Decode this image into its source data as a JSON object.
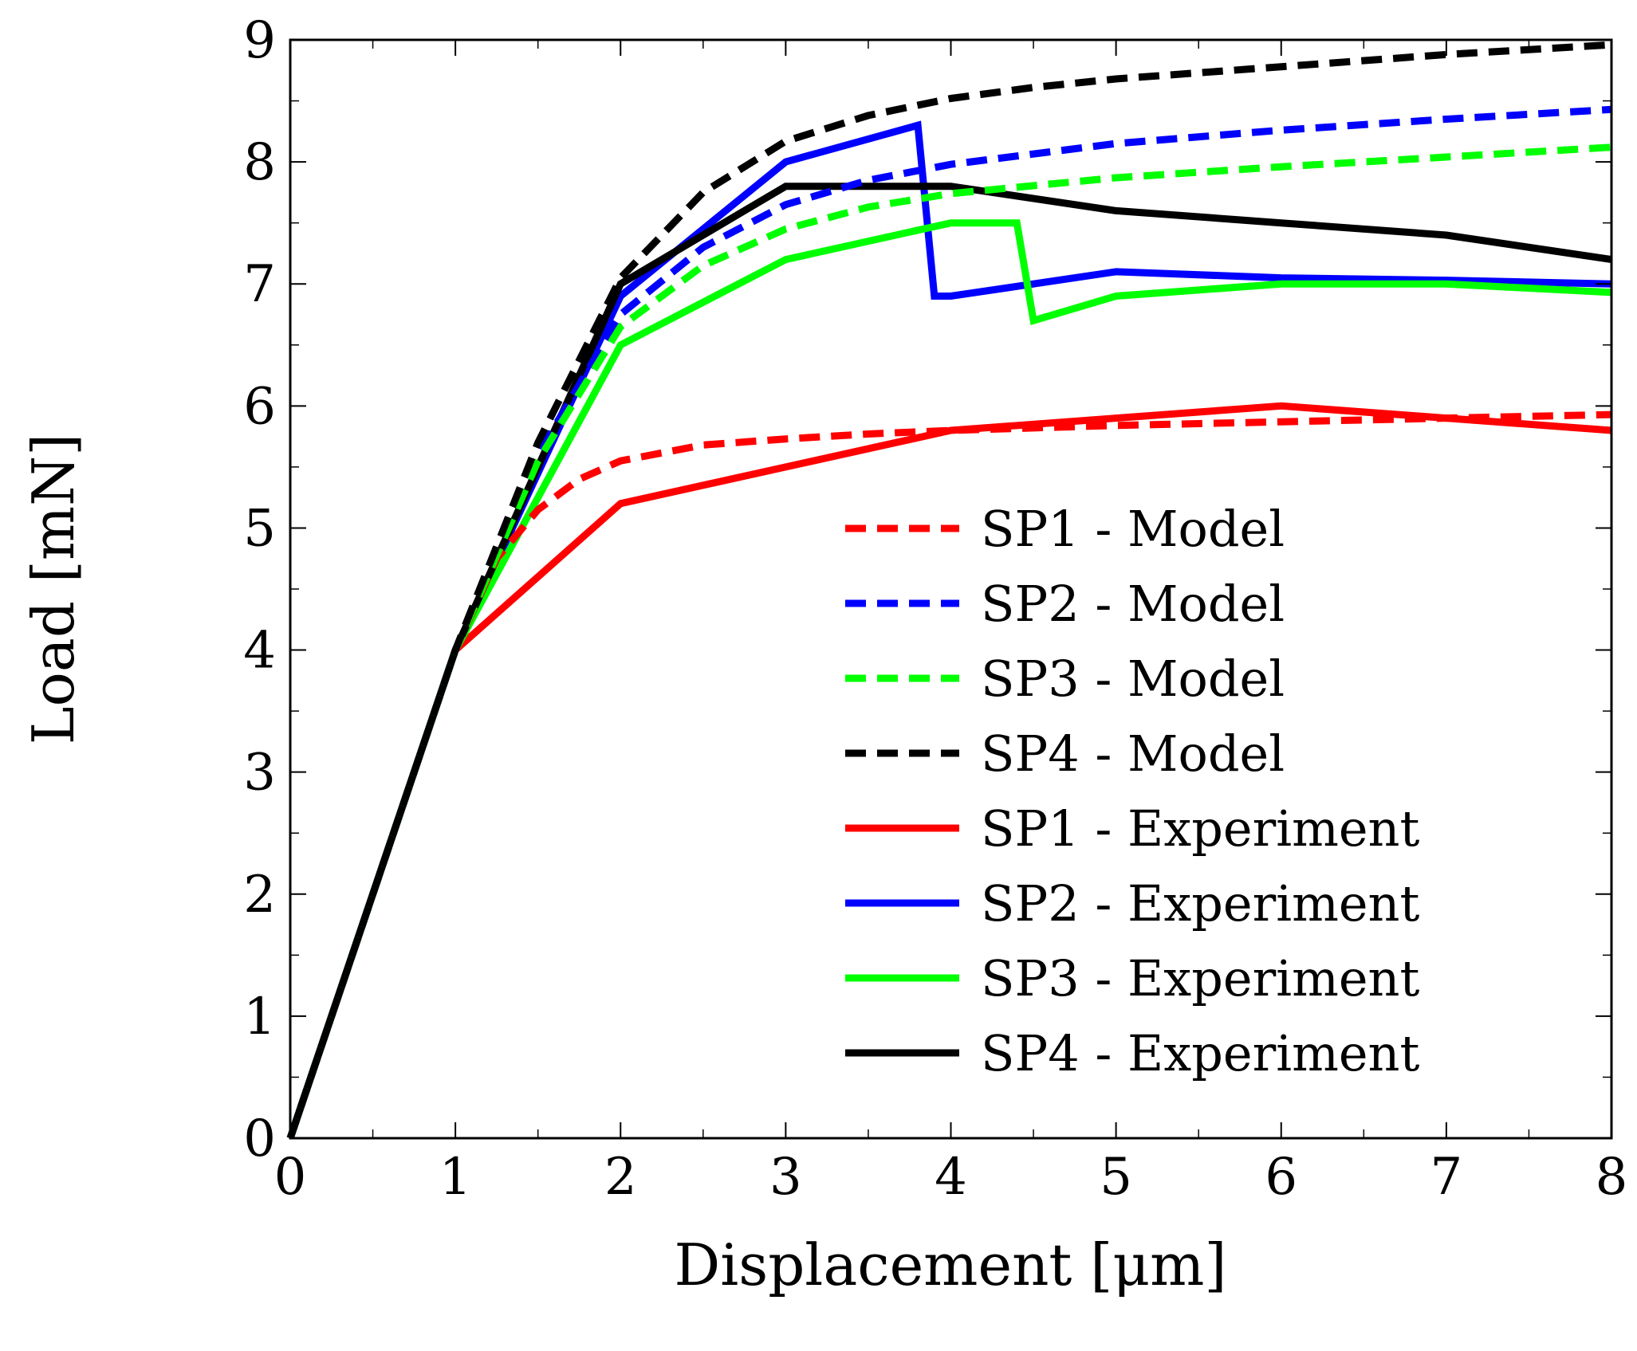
{
  "chart_data": {
    "type": "line",
    "title": "",
    "xlabel": "Displacement [μm]",
    "ylabel": "Load [mN]",
    "xlim": [
      0,
      8
    ],
    "ylim": [
      0,
      9
    ],
    "xticks": [
      0,
      1,
      2,
      3,
      4,
      5,
      6,
      7,
      8
    ],
    "yticks": [
      0,
      1,
      2,
      3,
      4,
      5,
      6,
      7,
      8,
      9
    ],
    "xtick_labels": [
      "0",
      "1",
      "2",
      "3",
      "4",
      "5",
      "6",
      "7",
      "8"
    ],
    "ytick_labels": [
      "0",
      "1",
      "2",
      "3",
      "4",
      "5",
      "6",
      "7",
      "8",
      "9"
    ],
    "grid": false,
    "legend_position": "bottom-right",
    "series": [
      {
        "name": "SP1 - Model",
        "color": "#ff0000",
        "style": "dashed",
        "x": [
          0,
          0.5,
          1.0,
          1.25,
          1.5,
          1.75,
          2.0,
          2.5,
          3.0,
          3.5,
          4.0,
          5.0,
          6.0,
          7.0,
          8.0
        ],
        "y": [
          0,
          2.0,
          4.0,
          4.75,
          5.15,
          5.4,
          5.55,
          5.68,
          5.73,
          5.77,
          5.8,
          5.84,
          5.87,
          5.9,
          5.93
        ]
      },
      {
        "name": "SP2 - Model",
        "color": "#0000ff",
        "style": "dashed",
        "x": [
          0,
          0.5,
          1.0,
          1.5,
          2.0,
          2.5,
          3.0,
          3.5,
          4.0,
          5.0,
          6.0,
          7.0,
          8.0
        ],
        "y": [
          0,
          2.0,
          4.0,
          5.6,
          6.75,
          7.3,
          7.65,
          7.85,
          7.98,
          8.15,
          8.26,
          8.35,
          8.43
        ]
      },
      {
        "name": "SP3 - Model",
        "color": "#00ff00",
        "style": "dashed",
        "x": [
          0,
          0.5,
          1.0,
          1.5,
          2.0,
          2.5,
          3.0,
          3.5,
          4.0,
          5.0,
          6.0,
          7.0,
          8.0
        ],
        "y": [
          0,
          2.0,
          4.0,
          5.55,
          6.65,
          7.15,
          7.45,
          7.63,
          7.74,
          7.87,
          7.96,
          8.04,
          8.12
        ]
      },
      {
        "name": "SP4 - Model",
        "color": "#000000",
        "style": "dashed",
        "x": [
          0,
          0.5,
          1.0,
          1.5,
          2.0,
          2.5,
          3.0,
          3.5,
          4.0,
          4.5,
          5.0,
          6.0,
          7.0,
          8.0
        ],
        "y": [
          0,
          2.0,
          4.0,
          5.7,
          7.05,
          7.75,
          8.17,
          8.38,
          8.52,
          8.61,
          8.68,
          8.78,
          8.88,
          8.96
        ]
      },
      {
        "name": "SP1 - Experiment",
        "color": "#ff0000",
        "style": "solid",
        "x": [
          0,
          1.0,
          2.0,
          3.0,
          4.0,
          5.0,
          6.0,
          7.0,
          8.0
        ],
        "y": [
          0,
          4.0,
          5.2,
          5.5,
          5.8,
          5.9,
          6.0,
          5.9,
          5.8
        ]
      },
      {
        "name": "SP2 - Experiment",
        "color": "#0000ff",
        "style": "solid",
        "x": [
          0,
          1.0,
          2.0,
          3.0,
          3.8,
          3.9,
          4.0,
          5.0,
          6.0,
          7.0,
          8.0
        ],
        "y": [
          0,
          4.0,
          6.9,
          8.0,
          8.3,
          6.9,
          6.9,
          7.1,
          7.05,
          7.03,
          7.0
        ]
      },
      {
        "name": "SP3 - Experiment",
        "color": "#00ff00",
        "style": "solid",
        "x": [
          0,
          1.0,
          2.0,
          3.0,
          4.0,
          4.4,
          4.5,
          5.0,
          6.0,
          7.0,
          8.0
        ],
        "y": [
          0,
          4.0,
          6.5,
          7.2,
          7.5,
          7.5,
          6.7,
          6.9,
          7.0,
          7.0,
          6.93
        ]
      },
      {
        "name": "SP4 - Experiment",
        "color": "#000000",
        "style": "solid",
        "x": [
          0,
          1.0,
          2.0,
          3.0,
          4.0,
          5.0,
          6.0,
          7.0,
          8.0
        ],
        "y": [
          0,
          4.0,
          7.0,
          7.8,
          7.8,
          7.6,
          7.5,
          7.4,
          7.2
        ]
      }
    ]
  }
}
